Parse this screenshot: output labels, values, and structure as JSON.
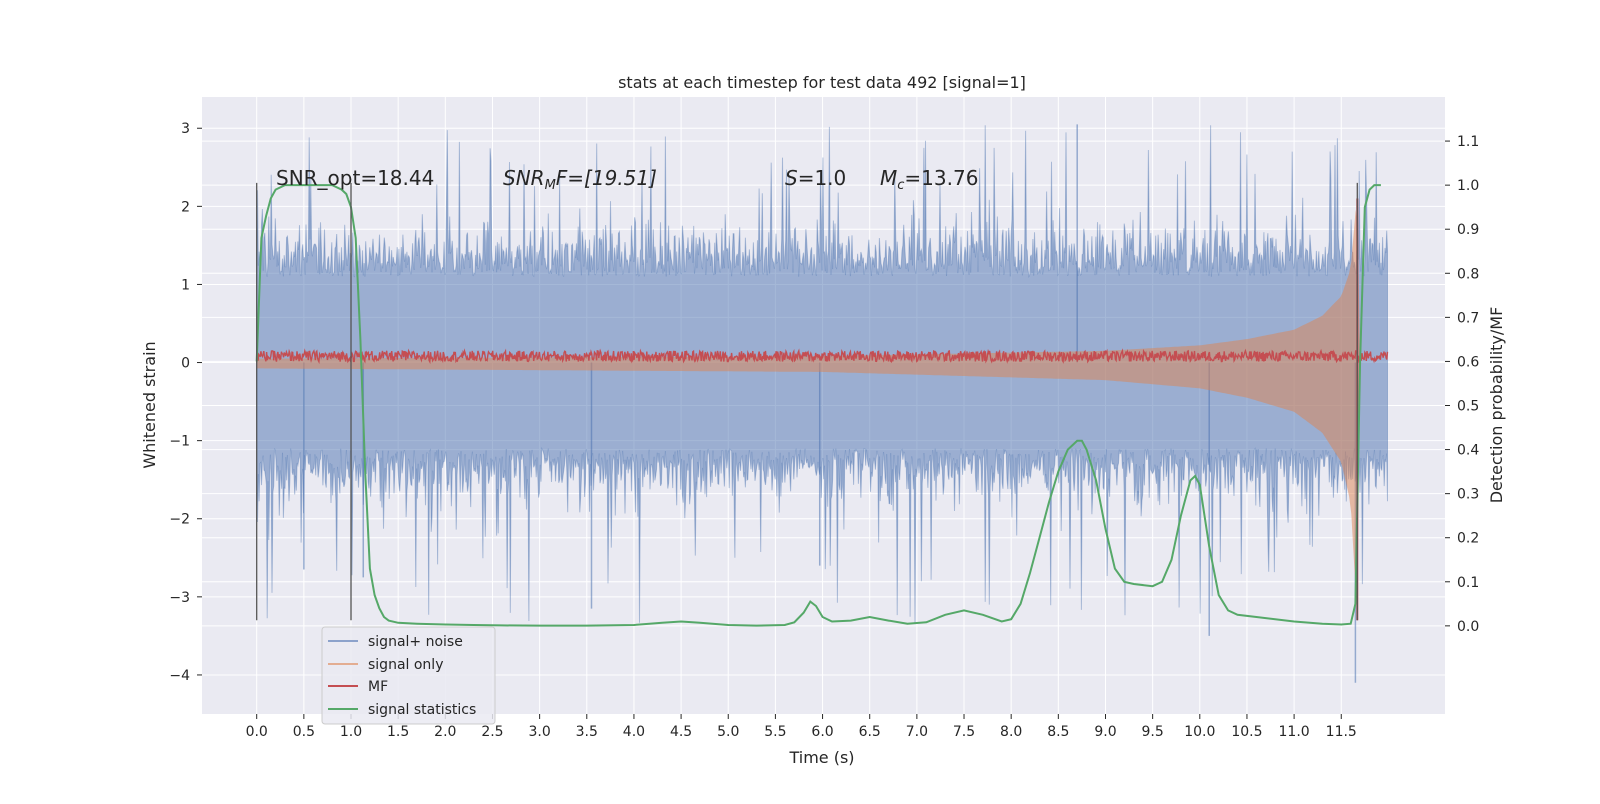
{
  "chart_data": {
    "type": "line",
    "title": "stats at each timestep for test data 492 [signal=1]",
    "xlabel": "Time (s)",
    "ylabel_left": "Whitened strain",
    "ylabel_right": "Detection probability/MF",
    "xlim": [
      -0.58,
      12.6
    ],
    "ylim_left": [
      -4.5,
      3.4
    ],
    "ylim_right": [
      -0.2,
      1.2
    ],
    "x_ticks": [
      "0.0",
      "0.5",
      "1.0",
      "1.5",
      "2.0",
      "2.5",
      "3.0",
      "3.5",
      "4.0",
      "4.5",
      "5.0",
      "5.5",
      "6.0",
      "6.5",
      "7.0",
      "7.5",
      "8.0",
      "8.5",
      "9.0",
      "9.5",
      "10.0",
      "10.5",
      "11.0",
      "11.5"
    ],
    "y_ticks_left": [
      "3",
      "2",
      "1",
      "0",
      "−1",
      "−2",
      "−3",
      "−4"
    ],
    "y_ticks_right": [
      "1.1",
      "1.0",
      "0.9",
      "0.8",
      "0.7",
      "0.6",
      "0.5",
      "0.4",
      "0.3",
      "0.2",
      "0.1",
      "0.0"
    ],
    "grid": true,
    "legend_position": "lower-left",
    "annotations": {
      "snr_opt": "SNR_opt=18.44",
      "snr_mf_sym": "SNR",
      "snr_mf_sub": "M",
      "snr_mf_rest": "F=[19.51]",
      "s_sym": "S",
      "s_rest": "=1.0",
      "mc_sym": "M",
      "mc_sub": "c",
      "mc_rest": "=13.76"
    },
    "vlines": [
      {
        "x": 0.0,
        "y_range": [
          -3.3,
          2.3
        ]
      },
      {
        "x": 1.0,
        "y_range": [
          -3.3,
          2.3
        ]
      },
      {
        "x": 11.67,
        "y_range": [
          -3.3,
          2.3
        ]
      }
    ],
    "series": [
      {
        "name": "signal+ noise",
        "color": "#4c72b0",
        "kind": "noise_band",
        "x_range": [
          0.0,
          11.99
        ],
        "typical_max": 1.7,
        "typical_min": -1.7,
        "peak_max": 3.05,
        "peak_min": -4.1
      },
      {
        "name": "signal only",
        "color": "#dd8452",
        "kind": "chirp_envelope",
        "x": [
          0.0,
          6.0,
          9.0,
          10.0,
          10.5,
          11.0,
          11.3,
          11.5,
          11.6,
          11.67,
          11.7
        ],
        "envelope": [
          0.05,
          0.08,
          0.15,
          0.22,
          0.3,
          0.42,
          0.6,
          0.85,
          1.2,
          2.2,
          0.0
        ]
      },
      {
        "name": "MF",
        "color": "#c44e52",
        "kind": "trace",
        "x_range": [
          0.0,
          11.99
        ],
        "level": 0.06,
        "spike_x": 11.67,
        "spike_top": 2.1,
        "spike_bottom": -3.3
      },
      {
        "name": "signal statistics",
        "color": "#55a868",
        "axis": "right",
        "x": [
          0.0,
          0.05,
          0.1,
          0.15,
          0.2,
          0.3,
          0.4,
          0.6,
          0.8,
          0.9,
          0.95,
          1.0,
          1.05,
          1.1,
          1.15,
          1.2,
          1.25,
          1.3,
          1.35,
          1.4,
          1.5,
          1.7,
          2.0,
          2.3,
          2.6,
          3.0,
          3.5,
          4.0,
          4.3,
          4.5,
          4.7,
          5.0,
          5.3,
          5.6,
          5.7,
          5.8,
          5.87,
          5.93,
          6.0,
          6.1,
          6.3,
          6.5,
          6.7,
          6.9,
          7.1,
          7.3,
          7.5,
          7.7,
          7.9,
          8.0,
          8.1,
          8.2,
          8.3,
          8.4,
          8.5,
          8.6,
          8.7,
          8.75,
          8.8,
          8.9,
          9.0,
          9.1,
          9.2,
          9.3,
          9.5,
          9.6,
          9.7,
          9.8,
          9.9,
          9.95,
          10.0,
          10.1,
          10.2,
          10.3,
          10.4,
          10.6,
          11.0,
          11.3,
          11.5,
          11.6,
          11.65,
          11.7,
          11.75,
          11.8,
          11.85,
          11.92
        ],
        "y": [
          0.6,
          0.88,
          0.93,
          0.97,
          0.99,
          1.0,
          1.0,
          1.0,
          1.0,
          0.99,
          0.98,
          0.95,
          0.88,
          0.65,
          0.35,
          0.13,
          0.07,
          0.04,
          0.02,
          0.012,
          0.007,
          0.005,
          0.003,
          0.002,
          0.001,
          0.0005,
          0.0005,
          0.002,
          0.007,
          0.01,
          0.007,
          0.002,
          0.0005,
          0.002,
          0.008,
          0.03,
          0.055,
          0.045,
          0.02,
          0.01,
          0.012,
          0.02,
          0.012,
          0.005,
          0.008,
          0.025,
          0.035,
          0.025,
          0.01,
          0.015,
          0.05,
          0.12,
          0.2,
          0.28,
          0.35,
          0.4,
          0.42,
          0.42,
          0.4,
          0.33,
          0.22,
          0.13,
          0.1,
          0.095,
          0.09,
          0.1,
          0.15,
          0.25,
          0.33,
          0.34,
          0.32,
          0.18,
          0.07,
          0.035,
          0.025,
          0.02,
          0.01,
          0.005,
          0.003,
          0.005,
          0.05,
          0.6,
          0.95,
          0.99,
          1.0,
          1.0
        ]
      }
    ]
  }
}
